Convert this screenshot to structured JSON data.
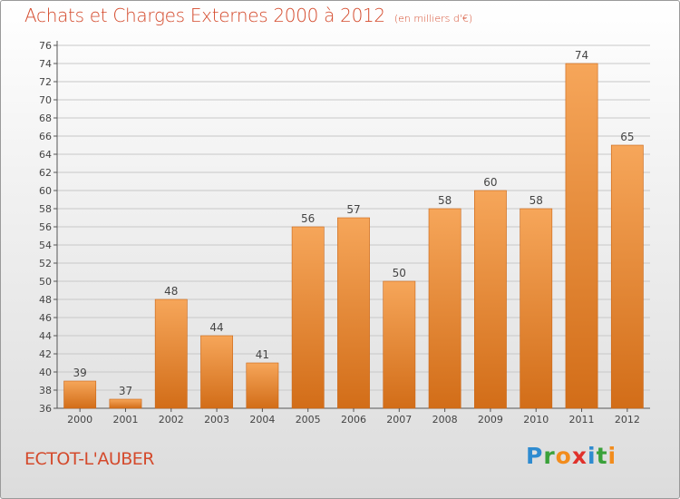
{
  "header": {
    "title": "Achats et Charges Externes 2000 à 2012",
    "subtitle": "(en milliers d'€)"
  },
  "footer": {
    "place": "ECTOT-L'AUBER",
    "logo_letters": [
      "P",
      "r",
      "o",
      "x",
      "i",
      "t",
      "i"
    ],
    "logo_colors": [
      "#2e8bd0",
      "#3aa13a",
      "#f28c1c",
      "#e0312b",
      "#2e8bd0",
      "#3aa13a",
      "#f28c1c"
    ]
  },
  "colors": {
    "bar_light": "#f6a65a",
    "bar_dark": "#d26d18",
    "title": "#d44a2c",
    "grid": "#c8c8c8"
  },
  "chart_data": {
    "type": "bar",
    "title": "Achats et Charges Externes 2000 à 2012",
    "subtitle": "(en milliers d'€)",
    "categories": [
      "2000",
      "2001",
      "2002",
      "2003",
      "2004",
      "2005",
      "2006",
      "2007",
      "2008",
      "2009",
      "2010",
      "2011",
      "2012"
    ],
    "values": [
      39,
      37,
      48,
      44,
      41,
      56,
      57,
      50,
      58,
      60,
      58,
      74,
      65
    ],
    "ylim": [
      36,
      76
    ],
    "ytick_step": 2,
    "grid": true,
    "xlabel": "",
    "ylabel": ""
  }
}
